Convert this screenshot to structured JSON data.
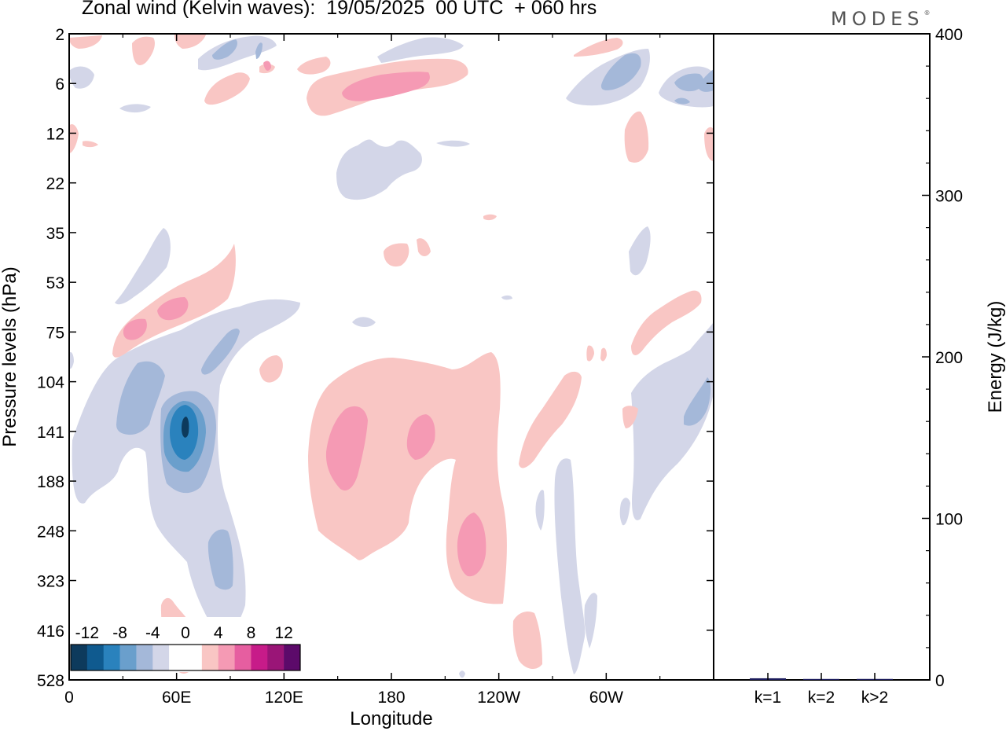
{
  "title": "Zonal wind (Kelvin waves):  19/05/2025  00 UTC  + 060 hrs",
  "logo": "MODES",
  "colors": {
    "levels": [
      "#0d3a5c",
      "#0f5a8f",
      "#2a82bd",
      "#6a9fcc",
      "#a4b8d9",
      "#d3d6e8",
      "#ffffff",
      "#ffffff",
      "#f9c6c4",
      "#f59ab4",
      "#e65ea0",
      "#c71b89",
      "#9a1577",
      "#5c0a6a"
    ],
    "neg_light": "#d3d6e8",
    "neg_mid": "#a4b8d9",
    "neg_mid2": "#6a9fcc",
    "neg_strong": "#2a82bd",
    "neg_core": "#0f5a8f",
    "neg_darkest": "#0d3a5c",
    "pos_light": "#f9c6c4",
    "pos_mid": "#f59ab4"
  },
  "chart_data": [
    {
      "type": "heatmap",
      "title": "Zonal wind (Kelvin waves):  19/05/2025  00 UTC  + 060 hrs",
      "xlabel": "Longitude",
      "ylabel": "Pressure levels (hPa)",
      "x_ticks": [
        "0",
        "60E",
        "120E",
        "180",
        "120W",
        "60W"
      ],
      "y_ticks": [
        "2",
        "6",
        "12",
        "22",
        "35",
        "53",
        "75",
        "104",
        "141",
        "188",
        "248",
        "323",
        "416",
        "528"
      ],
      "colorbar_labels": [
        "-12",
        "-8",
        "-4",
        "0",
        "4",
        "8",
        "12"
      ],
      "features": [
        {
          "sign": "negative",
          "lon": 64,
          "p_hPa": 141,
          "peak": -12
        },
        {
          "sign": "negative",
          "lon": 90,
          "p_hPa": 323,
          "peak": -5
        },
        {
          "sign": "negative",
          "lon": 334,
          "p_hPa": 141,
          "peak": -5
        },
        {
          "sign": "positive",
          "lon": 154,
          "p_hPa": 141,
          "peak": 6
        },
        {
          "sign": "positive",
          "lon": 198,
          "p_hPa": 141,
          "peak": 6
        },
        {
          "sign": "positive",
          "lon": 223,
          "p_hPa": 280,
          "peak": 6
        },
        {
          "sign": "positive",
          "lon": 175,
          "p_hPa": 6,
          "peak": 6
        },
        {
          "sign": "positive",
          "lon": 57,
          "p_hPa": 75,
          "peak": 5
        }
      ]
    },
    {
      "type": "bar",
      "ylabel": "Energy (J/kg)",
      "categories": [
        "k=1",
        "k=2",
        "k>2"
      ],
      "values": [
        1,
        0.3,
        0.6
      ],
      "ylim": [
        0,
        400
      ],
      "y_ticks": [
        "0",
        "100",
        "200",
        "300",
        "400"
      ]
    }
  ]
}
